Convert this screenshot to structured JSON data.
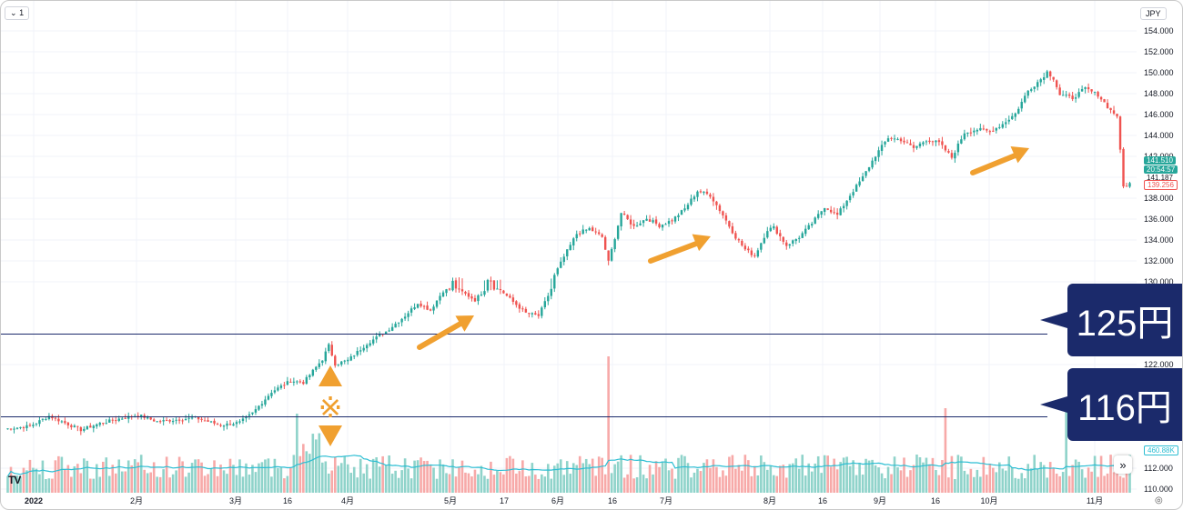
{
  "header": {
    "interval": "1",
    "currency": "JPY"
  },
  "colors": {
    "up": "#26a69a",
    "down": "#ef5350",
    "vol_up": "#8fd3ca",
    "vol_down": "#f7a9a8",
    "vol_ma": "#2cbed3",
    "annotation": "#f0a030",
    "callout_bg": "#1b2a6b",
    "line": "#1b2a6b"
  },
  "callouts": [
    {
      "label": "125円",
      "price": 125
    },
    {
      "label": "116円",
      "price": 116
    }
  ],
  "price_tags": {
    "last": "141.510",
    "countdown": "20:54:57",
    "prev": "141.187",
    "ask": "139.256",
    "volume_ma": "460.88K"
  },
  "toolbar": {
    "scroll_icon": "»",
    "settings_icon": "◎",
    "logo": "TV"
  },
  "annotation_mark": "※",
  "chart_data": {
    "type": "candlestick",
    "title": "",
    "yaxis": {
      "ticks": [
        "154.000",
        "152.000",
        "150.000",
        "148.000",
        "146.000",
        "144.000",
        "142.000",
        "140.000",
        "138.000",
        "136.000",
        "134.000",
        "132.000",
        "130.000",
        "122.000",
        "112.000",
        "110.000"
      ],
      "range": [
        110,
        155
      ]
    },
    "xaxis": {
      "ticks": [
        "2022",
        "2月",
        "3月",
        "16",
        "4月",
        "5月",
        "17",
        "6月",
        "16",
        "7月",
        "8月",
        "16",
        "9月",
        "16",
        "10月",
        "11月"
      ]
    },
    "anchors": [
      {
        "i": 0,
        "p": 114.8
      },
      {
        "i": 8,
        "p": 115.1
      },
      {
        "i": 14,
        "p": 116.2
      },
      {
        "i": 20,
        "p": 115.3
      },
      {
        "i": 24,
        "p": 114.7
      },
      {
        "i": 30,
        "p": 115.4
      },
      {
        "i": 36,
        "p": 115.9
      },
      {
        "i": 42,
        "p": 116.3
      },
      {
        "i": 48,
        "p": 115.6
      },
      {
        "i": 54,
        "p": 115.8
      },
      {
        "i": 60,
        "p": 116.0
      },
      {
        "i": 68,
        "p": 115.2
      },
      {
        "i": 74,
        "p": 115.5
      },
      {
        "i": 78,
        "p": 116.5
      },
      {
        "i": 84,
        "p": 118.8
      },
      {
        "i": 90,
        "p": 120.0
      },
      {
        "i": 94,
        "p": 119.8
      },
      {
        "i": 100,
        "p": 122.3
      },
      {
        "i": 102,
        "p": 123.8
      },
      {
        "i": 104,
        "p": 121.8
      },
      {
        "i": 108,
        "p": 122.2
      },
      {
        "i": 114,
        "p": 124.0
      },
      {
        "i": 120,
        "p": 125.3
      },
      {
        "i": 126,
        "p": 127.0
      },
      {
        "i": 130,
        "p": 128.4
      },
      {
        "i": 134,
        "p": 127.6
      },
      {
        "i": 138,
        "p": 129.7
      },
      {
        "i": 142,
        "p": 130.0
      },
      {
        "i": 148,
        "p": 128.7
      },
      {
        "i": 152,
        "p": 130.2
      },
      {
        "i": 156,
        "p": 129.8
      },
      {
        "i": 160,
        "p": 128.5
      },
      {
        "i": 164,
        "p": 127.3
      },
      {
        "i": 168,
        "p": 127.0
      },
      {
        "i": 172,
        "p": 129.9
      },
      {
        "i": 176,
        "p": 132.3
      },
      {
        "i": 180,
        "p": 134.5
      },
      {
        "i": 184,
        "p": 135.0
      },
      {
        "i": 188,
        "p": 134.2
      },
      {
        "i": 190,
        "p": 131.8
      },
      {
        "i": 194,
        "p": 136.5
      },
      {
        "i": 198,
        "p": 135.2
      },
      {
        "i": 202,
        "p": 136.0
      },
      {
        "i": 206,
        "p": 135.3
      },
      {
        "i": 210,
        "p": 135.8
      },
      {
        "i": 214,
        "p": 136.9
      },
      {
        "i": 218,
        "p": 138.6
      },
      {
        "i": 222,
        "p": 138.2
      },
      {
        "i": 226,
        "p": 136.3
      },
      {
        "i": 230,
        "p": 134.2
      },
      {
        "i": 233,
        "p": 133.0
      },
      {
        "i": 236,
        "p": 132.4
      },
      {
        "i": 240,
        "p": 134.9
      },
      {
        "i": 242,
        "p": 135.1
      },
      {
        "i": 246,
        "p": 133.4
      },
      {
        "i": 250,
        "p": 134.2
      },
      {
        "i": 254,
        "p": 135.5
      },
      {
        "i": 258,
        "p": 137.1
      },
      {
        "i": 262,
        "p": 136.3
      },
      {
        "i": 266,
        "p": 138.2
      },
      {
        "i": 270,
        "p": 139.9
      },
      {
        "i": 274,
        "p": 142.0
      },
      {
        "i": 278,
        "p": 143.7
      },
      {
        "i": 282,
        "p": 143.5
      },
      {
        "i": 286,
        "p": 142.7
      },
      {
        "i": 290,
        "p": 143.5
      },
      {
        "i": 294,
        "p": 143.2
      },
      {
        "i": 298,
        "p": 141.8
      },
      {
        "i": 302,
        "p": 144.2
      },
      {
        "i": 306,
        "p": 144.5
      },
      {
        "i": 310,
        "p": 144.3
      },
      {
        "i": 314,
        "p": 145.0
      },
      {
        "i": 318,
        "p": 146.0
      },
      {
        "i": 322,
        "p": 148.2
      },
      {
        "i": 326,
        "p": 149.3
      },
      {
        "i": 328,
        "p": 150.0
      },
      {
        "i": 330,
        "p": 149.4
      },
      {
        "i": 332,
        "p": 147.8
      },
      {
        "i": 336,
        "p": 147.5
      },
      {
        "i": 340,
        "p": 148.4
      },
      {
        "i": 344,
        "p": 147.8
      },
      {
        "i": 348,
        "p": 146.3
      },
      {
        "i": 350,
        "p": 145.8
      },
      {
        "i": 352,
        "p": 139.0
      },
      {
        "i": 354,
        "p": 139.3
      }
    ],
    "n_candles": 355,
    "volume_spikes": [
      {
        "i": 92,
        "v": 2.9
      },
      {
        "i": 190,
        "v": 5.0
      },
      {
        "i": 296,
        "v": 3.1
      },
      {
        "i": 334,
        "v": 3.0
      }
    ],
    "reference_lines": [
      125,
      116
    ]
  }
}
